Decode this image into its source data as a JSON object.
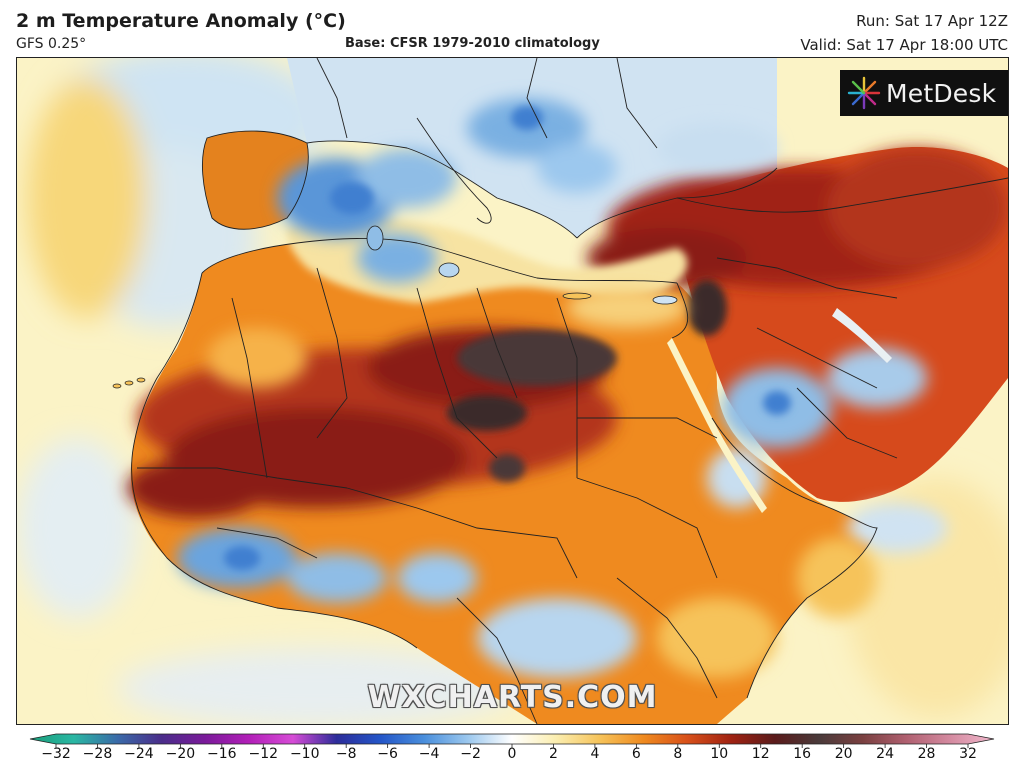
{
  "header": {
    "title": "2 m Temperature Anomaly (°C)",
    "model": "GFS 0.25°",
    "base": "Base: CFSR 1979-2010 climatology",
    "run": "Run: Sat 17 Apr 12Z",
    "valid": "Valid: Sat 17 Apr 18:00 UTC"
  },
  "logo": {
    "text": "MetDesk",
    "icon": "metdesk-starburst-logo"
  },
  "watermark": "WXCHARTS.COM",
  "colorbar": {
    "ticks": [
      "−32",
      "−28",
      "−24",
      "−20",
      "−16",
      "−12",
      "−10",
      "−8",
      "−6",
      "−4",
      "−2",
      "0",
      "2",
      "4",
      "6",
      "8",
      "10",
      "12",
      "16",
      "20",
      "24",
      "28",
      "32"
    ],
    "colors": [
      "#1a9e7a",
      "#2ab7a3",
      "#3a6aa8",
      "#4a2d8a",
      "#7a1a9a",
      "#b21fb8",
      "#d64cd6",
      "#2c2c9a",
      "#2456c8",
      "#4a8fdc",
      "#9cc8ee",
      "#ffffff",
      "#fbeeb0",
      "#f6c35a",
      "#ef8a1f",
      "#d8501a",
      "#a02212",
      "#5a1b1b",
      "#4a3a3a",
      "#7a4040",
      "#b06070",
      "#d48aa0",
      "#f0b8cc"
    ]
  },
  "map": {
    "colors": {
      "ocean": "#fbf3c6",
      "cool_light": "#cfe4f3",
      "cool_mid": "#8fbde6",
      "cool_deep": "#3f7fd0",
      "warm_light": "#f6c35a",
      "warm_orange": "#ef8a1f",
      "warm_red": "#c9431a",
      "warm_darkred": "#8a1c12",
      "extreme": "#4a3838",
      "border": "#222222"
    }
  }
}
